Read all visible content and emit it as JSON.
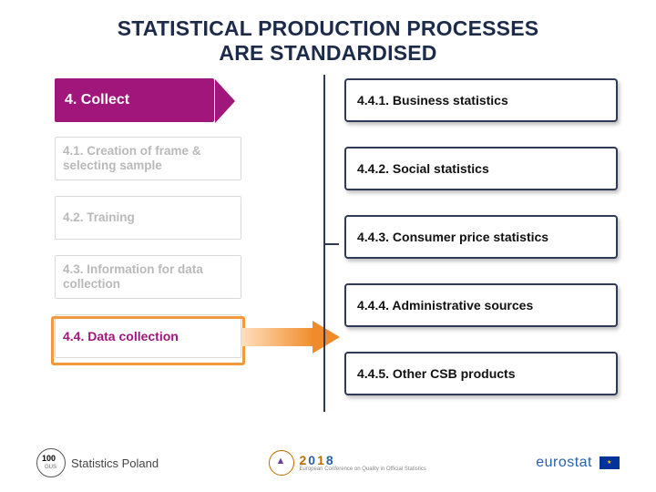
{
  "title_line1": "STATISTICAL PRODUCTION PROCESSES",
  "title_line2": "ARE STANDARDISED",
  "title_color": "#1c2b4a",
  "left": {
    "header": {
      "label": "4. Collect",
      "bg": "#a0167b",
      "text_color": "#ffffff"
    },
    "items": [
      {
        "label": "4.1. Creation of frame & selecting sample"
      },
      {
        "label": "4.2. Training"
      },
      {
        "label": "4.3. Information for data collection"
      },
      {
        "label": "4.4. Data collection",
        "active": true
      }
    ],
    "inactive_color": "#b9b9b9",
    "active_color": "#a0167b",
    "box_border": "#d9d9d9",
    "highlight_border": "#f29a3b"
  },
  "arrow": {
    "fill": "#f08b2b",
    "shaft_gradient_start": "#ffe0bd",
    "shaft_gradient_end": "#f08b2b"
  },
  "divider_color": "#2f3a56",
  "right": {
    "items": [
      {
        "label": "4.4.1. Business statistics"
      },
      {
        "label": "4.4.2. Social statistics"
      },
      {
        "label": "4.4.3. Consumer price statistics"
      },
      {
        "label": "4.4.4. Administrative sources"
      },
      {
        "label": "4.4.5. Other CSB products"
      }
    ],
    "border_color": "#2f3a56",
    "inner_bg": "#ffffff",
    "text_color": "#111111",
    "shadow": "2px 3px 4px rgba(0,0,0,0.25)"
  },
  "footer": {
    "left_logo_text": "Statistics Poland",
    "center_year": "2018",
    "center_year_colors": [
      "#c06a00",
      "#2b5fa8",
      "#c06a00",
      "#2b5fa8"
    ],
    "center_sub": "European Conference on Quality in Official Statistics",
    "eurostat_text": "eurostat",
    "eurostat_color": "#2b5fa8"
  }
}
